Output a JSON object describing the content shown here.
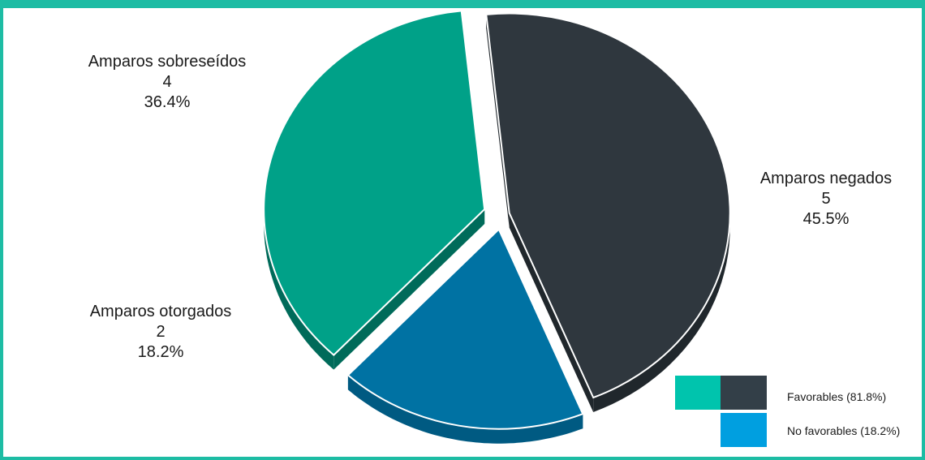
{
  "chart_data": {
    "type": "pie",
    "slices": [
      {
        "category": "Amparos negados",
        "value": 5,
        "percent": "45.5%",
        "color": "#2f373e",
        "side_color": "#20272c"
      },
      {
        "category": "Amparos otorgados",
        "value": 2,
        "percent": "18.2%",
        "color": "#0072a3",
        "side_color": "#005a82"
      },
      {
        "category": "Amparos sobreseídos",
        "value": 4,
        "percent": "36.4%",
        "color": "#00a188",
        "side_color": "#006b5a"
      }
    ],
    "legend": [
      {
        "label": "Favorables (81.8%)",
        "colors": [
          "#00c4ad",
          "#333f48"
        ]
      },
      {
        "label": "No favorables (18.2%)",
        "colors": [
          "#009fe0"
        ]
      }
    ],
    "legend_position": "bottom-right",
    "frame_color": "#1dbca4"
  }
}
